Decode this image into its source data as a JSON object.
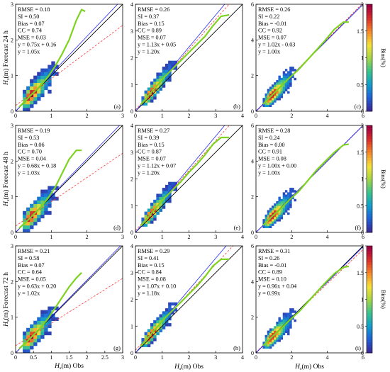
{
  "figure": {
    "row_labels": [
      "Forecast 24 h",
      "Forecast 48 h",
      "Forecast 72 h"
    ],
    "y_axis_prefix": "H",
    "y_axis_sub": "s",
    "y_axis_unit": "(m)",
    "x_axis_prefix": "H",
    "x_axis_sub": "s",
    "x_axis_unit": "(m)  Obs",
    "colorbar_label": "Bins(%)",
    "colorbar_ticks": [
      "0",
      "0.5",
      "1",
      "1.5",
      "2"
    ],
    "colormap": [
      "#3b2a98",
      "#1f63d6",
      "#14a0c9",
      "#3cc38a",
      "#a9d646",
      "#f7e23a",
      "#f68b2b",
      "#d7302a",
      "#9e0142"
    ],
    "line_colors": {
      "identity": "#000000",
      "fit": "#2a2aff",
      "fit_origin": "#ff3b3b",
      "binned_mean": "#7ed321"
    }
  },
  "chart_data": [
    {
      "type": "heatmap",
      "panel": "(a)",
      "xlim": [
        0,
        3
      ],
      "ylim": [
        0,
        3
      ],
      "xticks": [
        "0",
        "1",
        "2",
        "3"
      ],
      "yticks": [
        "0",
        "1",
        "2",
        "3"
      ],
      "stats": [
        "RMSE = 0.18",
        "SI = 0.50",
        "Bias = 0.07",
        "CC = 0.74",
        "MSE = 0.03",
        "y = 0.75x + 0.16",
        "y = 1.05x"
      ],
      "fit": {
        "slope": 0.75,
        "intercept": 0.16
      },
      "fit_origin": {
        "slope": 1.05
      },
      "binned_mean": {
        "x": [
          0.1,
          0.3,
          0.5,
          0.7,
          0.9,
          1.1,
          1.3,
          1.5,
          1.7,
          1.85,
          1.95
        ],
        "y": [
          0.12,
          0.32,
          0.52,
          0.72,
          0.96,
          1.25,
          1.6,
          2.0,
          2.55,
          2.85,
          2.8
        ]
      }
    },
    {
      "type": "heatmap",
      "panel": "(b)",
      "xlim": [
        0,
        4
      ],
      "ylim": [
        0,
        4
      ],
      "xticks": [
        "0",
        "1",
        "2",
        "3",
        "4"
      ],
      "yticks": [
        "0",
        "1",
        "2",
        "3",
        "4"
      ],
      "stats": [
        "RMSE = 0.26",
        "SI = 0.37",
        "Bias = 0.15",
        "CC = 0.89",
        "MSE = 0.07",
        "y = 1.13x + 0.05",
        "y = 1.20x"
      ],
      "fit": {
        "slope": 1.13,
        "intercept": 0.05
      },
      "fit_origin": {
        "slope": 1.2
      },
      "binned_mean": {
        "x": [
          0.2,
          0.5,
          0.8,
          1.1,
          1.4,
          1.7,
          2.0,
          2.3,
          2.6,
          2.9,
          3.2,
          3.5
        ],
        "y": [
          0.25,
          0.6,
          0.95,
          1.3,
          1.6,
          1.9,
          2.2,
          2.5,
          2.8,
          3.2,
          3.55,
          3.6
        ]
      }
    },
    {
      "type": "heatmap",
      "panel": "(c)",
      "xlim": [
        0,
        6
      ],
      "ylim": [
        0,
        6
      ],
      "xticks": [
        "0",
        "2",
        "4",
        "6"
      ],
      "yticks": [
        "0",
        "2",
        "4",
        "6"
      ],
      "stats": [
        "RMSE = 0.26",
        "SI = 0.22",
        "Bias = -0.01",
        "CC = 0.92",
        "MSE = 0.07",
        "y = 1.02x - 0.03",
        "y = 1.00x"
      ],
      "fit": {
        "slope": 1.02,
        "intercept": -0.03
      },
      "fit_origin": {
        "slope": 1.0
      },
      "binned_mean": {
        "x": [
          0.4,
          0.9,
          1.4,
          1.9,
          2.4,
          2.9,
          3.4,
          3.9,
          4.4,
          4.9,
          5.2
        ],
        "y": [
          0.4,
          0.9,
          1.4,
          1.9,
          2.35,
          2.9,
          3.45,
          4.0,
          4.6,
          5.0,
          5.0
        ]
      }
    },
    {
      "type": "heatmap",
      "panel": "(d)",
      "xlim": [
        0,
        3
      ],
      "ylim": [
        0,
        3
      ],
      "xticks": [
        "0",
        "1",
        "2",
        "3"
      ],
      "yticks": [
        "0",
        "1",
        "2",
        "3"
      ],
      "stats": [
        "RMSE = 0.19",
        "SI = 0.53",
        "Bias = 0.06",
        "CC = 0.70",
        "MSE = 0.04",
        "y = 0.68x + 0.18",
        "y = 1.03x"
      ],
      "fit": {
        "slope": 0.68,
        "intercept": 0.18
      },
      "fit_origin": {
        "slope": 1.03
      },
      "binned_mean": {
        "x": [
          0.1,
          0.3,
          0.5,
          0.7,
          0.9,
          1.1,
          1.3,
          1.5,
          1.7,
          1.85
        ],
        "y": [
          0.12,
          0.3,
          0.5,
          0.7,
          0.95,
          1.25,
          1.65,
          2.05,
          2.3,
          2.3
        ]
      }
    },
    {
      "type": "heatmap",
      "panel": "(e)",
      "xlim": [
        0,
        4
      ],
      "ylim": [
        0,
        4
      ],
      "xticks": [
        "0",
        "1",
        "2",
        "3",
        "4"
      ],
      "yticks": [
        "0",
        "1",
        "2",
        "3",
        "4"
      ],
      "stats": [
        "RMSE = 0.27",
        "SI = 0.39",
        "Bias = 0.15",
        "CC = 0.87",
        "MSE = 0.07",
        "y = 1.12x + 0.07",
        "y = 1.20x"
      ],
      "fit": {
        "slope": 1.12,
        "intercept": 0.07
      },
      "fit_origin": {
        "slope": 1.2
      },
      "binned_mean": {
        "x": [
          0.2,
          0.5,
          0.8,
          1.1,
          1.4,
          1.7,
          2.0,
          2.3,
          2.6,
          2.9,
          3.2,
          3.5
        ],
        "y": [
          0.25,
          0.6,
          0.95,
          1.3,
          1.6,
          1.9,
          2.25,
          2.55,
          2.9,
          3.3,
          3.55,
          3.55
        ]
      }
    },
    {
      "type": "heatmap",
      "panel": "(f)",
      "xlim": [
        0,
        6
      ],
      "ylim": [
        0,
        6
      ],
      "xticks": [
        "0",
        "2",
        "4",
        "6"
      ],
      "yticks": [
        "0",
        "2",
        "4",
        "6"
      ],
      "stats": [
        "RMSE = 0.28",
        "SI = 0.24",
        "Bias = 0.00",
        "CC = 0.91",
        "MSE = 0.08",
        "y = 1.00x + 0.00",
        "y = 1.00x"
      ],
      "fit": {
        "slope": 1.0,
        "intercept": 0.0
      },
      "fit_origin": {
        "slope": 1.0
      },
      "binned_mean": {
        "x": [
          0.4,
          0.9,
          1.4,
          1.9,
          2.4,
          2.9,
          3.4,
          3.9,
          4.4,
          4.9,
          5.2
        ],
        "y": [
          0.4,
          0.9,
          1.35,
          1.85,
          2.3,
          2.9,
          3.5,
          4.0,
          4.5,
          4.9,
          4.95
        ]
      }
    },
    {
      "type": "heatmap",
      "panel": "(g)",
      "xlim": [
        0,
        3
      ],
      "ylim": [
        0,
        3
      ],
      "xticks": [
        "0",
        "0.5",
        "1",
        "1.5",
        "2",
        "2.5",
        "3"
      ],
      "yticks": [
        "0",
        "1",
        "2",
        "3"
      ],
      "stats": [
        "RMSE = 0.21",
        "SI = 0.58",
        "Bias = 0.07",
        "CC = 0.64",
        "MSE = 0.05",
        "y = 0.63x + 0.20",
        "y = 1.02x"
      ],
      "fit": {
        "slope": 0.63,
        "intercept": 0.2
      },
      "fit_origin": {
        "slope": 1.02
      },
      "binned_mean": {
        "x": [
          0.1,
          0.3,
          0.5,
          0.7,
          0.9,
          1.1,
          1.3,
          1.5,
          1.7,
          1.85
        ],
        "y": [
          0.12,
          0.3,
          0.5,
          0.7,
          0.95,
          1.25,
          1.55,
          1.85,
          2.1,
          2.25
        ]
      }
    },
    {
      "type": "heatmap",
      "panel": "(h)",
      "xlim": [
        0,
        4
      ],
      "ylim": [
        0,
        4
      ],
      "xticks": [
        "0",
        "1",
        "2",
        "3",
        "4"
      ],
      "yticks": [
        "0",
        "1",
        "2",
        "3",
        "4"
      ],
      "stats": [
        "RMSE = 0.29",
        "SI = 0.41",
        "Bias = 0.15",
        "CC = 0.84",
        "MSE = 0.08",
        "y = 1.07x + 0.10",
        "y = 1.18x"
      ],
      "fit": {
        "slope": 1.07,
        "intercept": 0.1
      },
      "fit_origin": {
        "slope": 1.18
      },
      "binned_mean": {
        "x": [
          0.2,
          0.5,
          0.8,
          1.1,
          1.4,
          1.7,
          2.0,
          2.3,
          2.6,
          2.9,
          3.2,
          3.5
        ],
        "y": [
          0.25,
          0.6,
          0.95,
          1.3,
          1.6,
          1.9,
          2.2,
          2.5,
          2.85,
          3.25,
          3.5,
          3.5
        ]
      }
    },
    {
      "type": "heatmap",
      "panel": "(i)",
      "xlim": [
        0,
        6
      ],
      "ylim": [
        0,
        6
      ],
      "xticks": [
        "0",
        "2",
        "4",
        "6"
      ],
      "yticks": [
        "0",
        "2",
        "4",
        "6"
      ],
      "stats": [
        "RMSE = 0.31",
        "SI = 0.26",
        "Bias = -0.01",
        "CC = 0.89",
        "MSE = 0.10",
        "y = 0.96x + 0.04",
        "y = 0.99x"
      ],
      "fit": {
        "slope": 0.96,
        "intercept": 0.04
      },
      "fit_origin": {
        "slope": 0.99
      },
      "binned_mean": {
        "x": [
          0.4,
          0.9,
          1.4,
          1.9,
          2.4,
          2.9,
          3.4,
          3.9,
          4.4,
          4.9,
          5.2
        ],
        "y": [
          0.4,
          0.9,
          1.35,
          1.85,
          2.3,
          2.85,
          3.4,
          3.95,
          4.45,
          4.8,
          4.85
        ]
      }
    }
  ]
}
